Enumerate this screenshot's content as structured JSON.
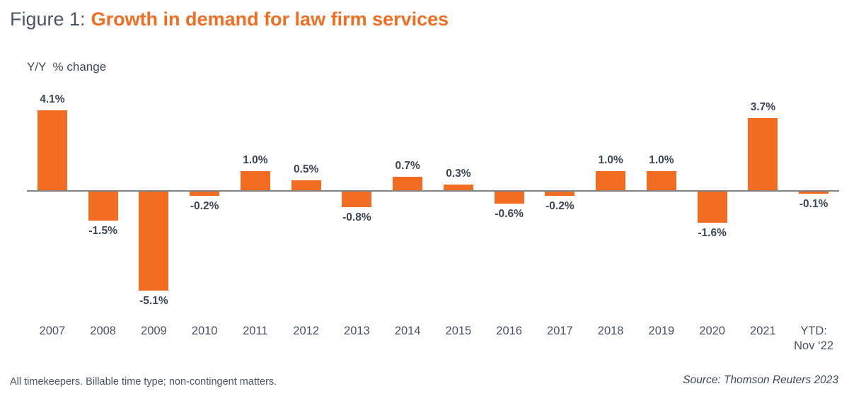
{
  "header": {
    "figure_label": "Figure 1:",
    "title": "Growth in demand for law firm services"
  },
  "chart_data": {
    "type": "bar",
    "title": "Growth in demand for law firm services",
    "ylabel": "Y/Y  % change",
    "xlabel": "",
    "categories": [
      "2007",
      "2008",
      "2009",
      "2010",
      "2011",
      "2012",
      "2013",
      "2014",
      "2015",
      "2016",
      "2017",
      "2018",
      "2019",
      "2020",
      "2021",
      "YTD:\nNov ‘22"
    ],
    "values": [
      4.1,
      -1.5,
      -5.1,
      -0.2,
      1.0,
      0.5,
      -0.8,
      0.7,
      0.3,
      -0.6,
      -0.2,
      1.0,
      1.0,
      -1.6,
      3.7,
      -0.1
    ],
    "value_labels": [
      "4.1%",
      "-1.5%",
      "-5.1%",
      "-0.2%",
      "1.0%",
      "0.5%",
      "-0.8%",
      "0.7%",
      "0.3%",
      "-0.6%",
      "-0.2%",
      "1.0%",
      "1.0%",
      "-1.6%",
      "3.7%",
      "-0.1%"
    ],
    "bar_color": "#F26D21",
    "label_color": "#3D4656",
    "axis_color": "#838383",
    "ylim": [
      -5.6,
      4.6
    ],
    "grid": false,
    "legend": false
  },
  "colors": {
    "accent_orange": "#F26D21",
    "text_dark": "#3D4656",
    "text_gray": "#4D5567"
  },
  "footer": {
    "note": "All timekeepers. Billable time type; non-contingent matters.",
    "source": "Source: Thomson Reuters 2023"
  }
}
